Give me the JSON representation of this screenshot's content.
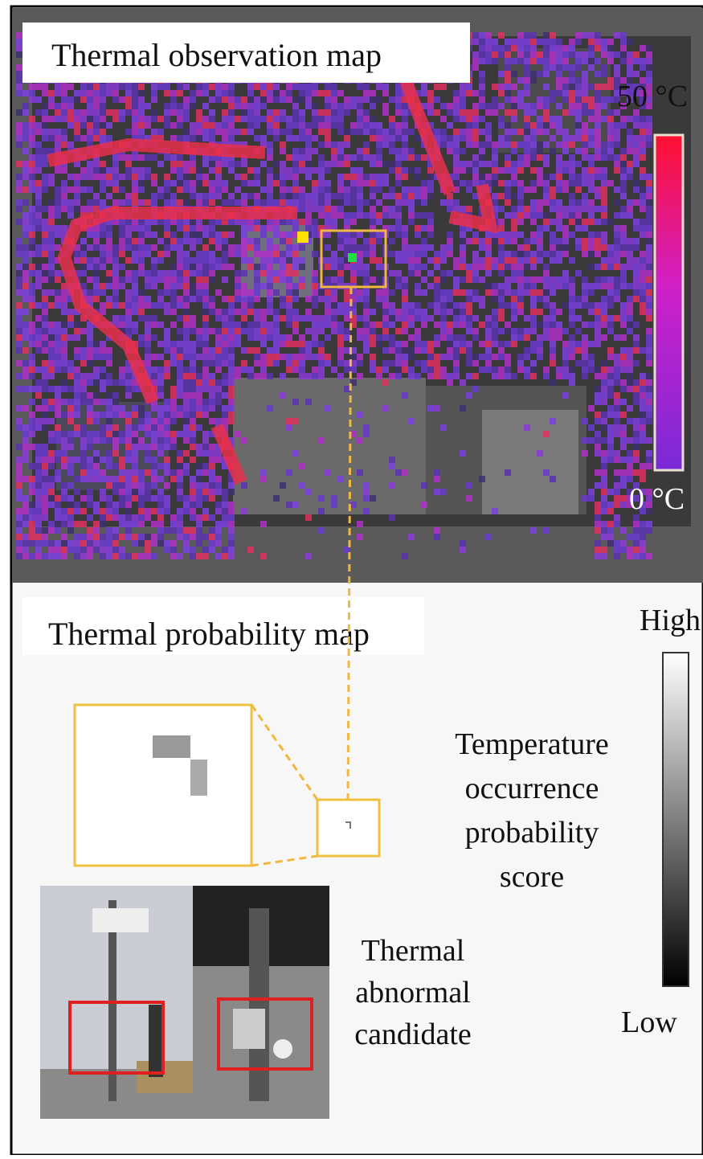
{
  "top_panel": {
    "title": "Thermal observation map",
    "scale_max": "50 °C",
    "scale_min": "0 °C"
  },
  "bottom_panel": {
    "title": "Thermal probability map",
    "scale_max": "High",
    "scale_min": "Low",
    "scale_label": [
      "Temperature",
      "occurrence",
      "probability",
      "score"
    ],
    "candidate_label": [
      "Thermal",
      "abnormal",
      "candidate"
    ]
  }
}
